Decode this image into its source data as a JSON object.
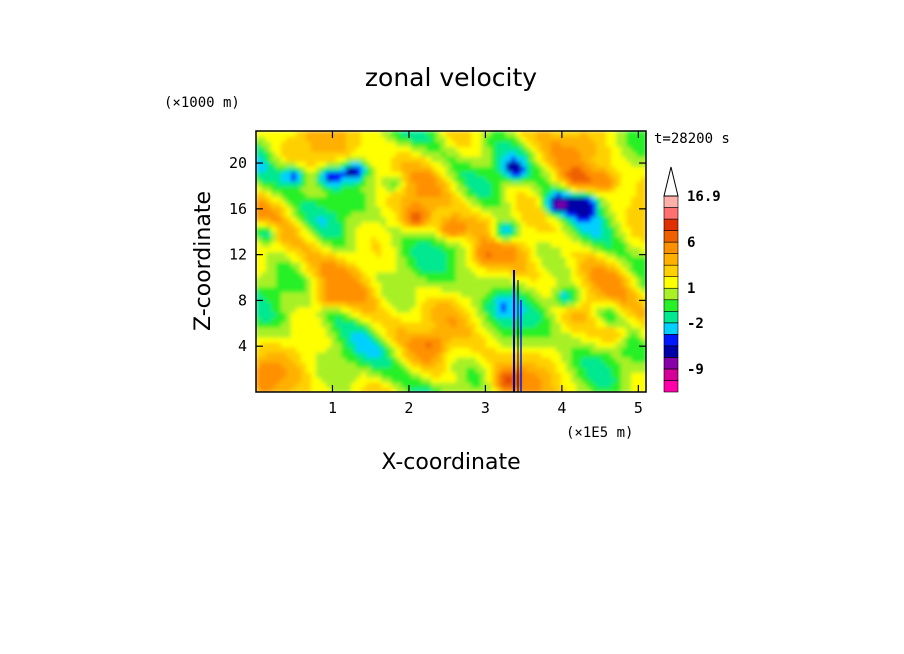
{
  "chart_data": {
    "type": "heatmap",
    "title": "zonal velocity",
    "time_label": "t=28200 s",
    "xlabel": "X-coordinate",
    "ylabel": "Z-coordinate",
    "x_unit": "(×1E5 m)",
    "y_unit": "(×1000 m)",
    "xlim": [
      0,
      5.1
    ],
    "ylim": [
      0,
      22.8
    ],
    "x_ticks": [
      1,
      2,
      3,
      4,
      5
    ],
    "y_ticks": [
      4,
      8,
      12,
      16,
      20
    ],
    "colorbar": {
      "labels": [
        {
          "text": "16.9",
          "value": 16.9
        },
        {
          "text": "6",
          "value": 6
        },
        {
          "text": "1",
          "value": 1
        },
        {
          "text": "-2",
          "value": -2
        },
        {
          "text": "-9",
          "value": -9
        }
      ],
      "levels": [
        -18,
        -13.5,
        -9,
        -6.5,
        -4,
        -3,
        -2,
        -1,
        0,
        1,
        2,
        3,
        4,
        6,
        8.5,
        11,
        14,
        16.9
      ],
      "colors": [
        "#ff00a8",
        "#d40098",
        "#8800a8",
        "#0000a8",
        "#0018ff",
        "#00d0ff",
        "#00e890",
        "#28f028",
        "#a8f028",
        "#ffff00",
        "#ffd000",
        "#ffb000",
        "#ff9000",
        "#ee6000",
        "#e03000",
        "#ff7070",
        "#ffb0a8"
      ],
      "extend": "max"
    },
    "features": [
      {
        "x": 1.28,
        "z": 19.4,
        "value": -6
      },
      {
        "x": 0.5,
        "z": 19.0,
        "value": -5
      },
      {
        "x": 0.95,
        "z": 18.8,
        "value": -5
      },
      {
        "x": 0.12,
        "z": 14.0,
        "value": -5
      },
      {
        "x": 1.8,
        "z": 18.3,
        "value": -3
      },
      {
        "x": 3.25,
        "z": 14.0,
        "value": -6
      },
      {
        "x": 3.95,
        "z": 16.5,
        "value": -6
      },
      {
        "x": 4.3,
        "z": 16.5,
        "value": -5
      },
      {
        "x": 3.35,
        "z": 19.5,
        "value": -4
      },
      {
        "x": 4.05,
        "z": 8.3,
        "value": -5
      },
      {
        "x": 4.2,
        "z": 18.8,
        "value": 5
      },
      {
        "x": 4.55,
        "z": 18.5,
        "value": 4
      },
      {
        "x": 2.1,
        "z": 15.3,
        "value": 5
      },
      {
        "x": 2.55,
        "z": 14.3,
        "value": 5
      },
      {
        "x": 3.0,
        "z": 12.0,
        "value": 3
      },
      {
        "x": 0.95,
        "z": 8.3,
        "value": 3
      },
      {
        "x": 3.3,
        "z": 1.0,
        "value": 5
      },
      {
        "x": 4.7,
        "z": 5.0,
        "value": 3
      },
      {
        "x": 2.3,
        "z": 4.2,
        "value": 3
      },
      {
        "x": 3.2,
        "z": 7.5,
        "value": -2
      },
      {
        "x": 4.6,
        "z": 7.0,
        "value": -2
      },
      {
        "x": 1.0,
        "z": 6.5,
        "value": -1
      },
      {
        "x": 0.1,
        "z": 1.5,
        "value": 2
      }
    ]
  }
}
